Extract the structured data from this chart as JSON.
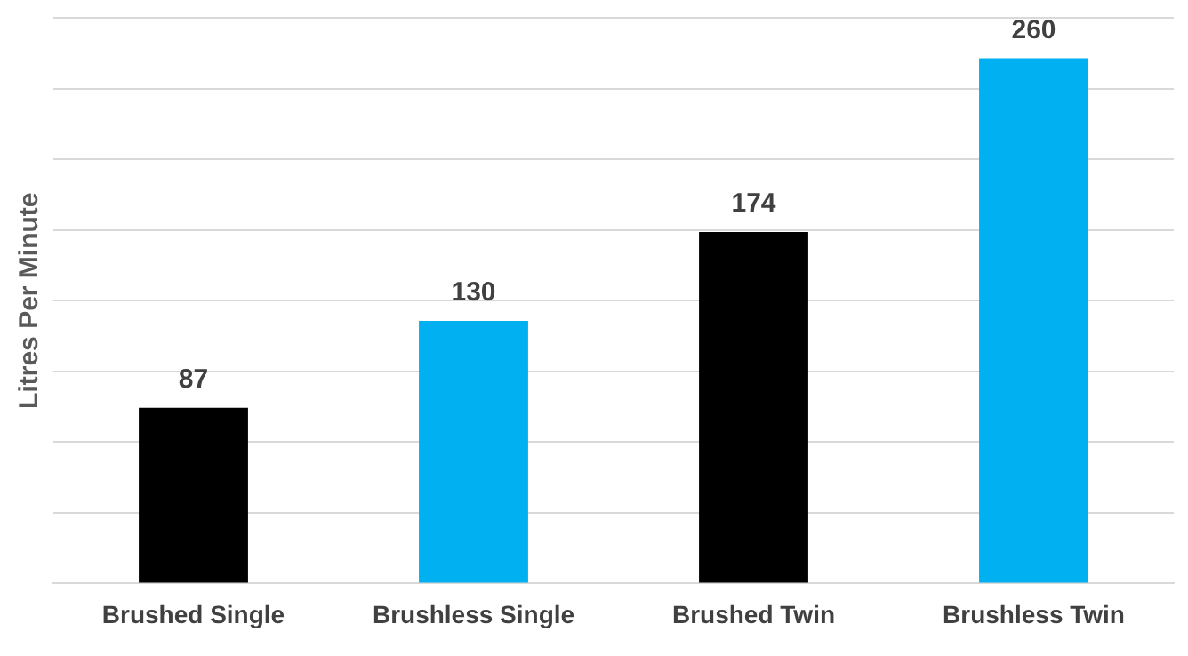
{
  "chart_data": {
    "type": "bar",
    "ylabel": "Litres Per Minute",
    "categories": [
      "Brushed Single",
      "Brushless Single",
      "Brushed Twin",
      "Brushless Twin"
    ],
    "values": [
      87,
      130,
      174,
      260
    ],
    "colors": [
      "#000000",
      "#00b0f0",
      "#000000",
      "#00b0f0"
    ],
    "ylim": [
      0,
      280
    ],
    "yticks": [
      {
        "value": 0,
        "label": null
      },
      {
        "value": 35,
        "label": null
      },
      {
        "value": 70,
        "label": null
      },
      {
        "value": 105,
        "label": null
      },
      {
        "value": 140,
        "label": null
      },
      {
        "value": 175,
        "label": null
      },
      {
        "value": 210,
        "label": null
      },
      {
        "value": 245,
        "label": null
      },
      {
        "value": 280,
        "label": null
      }
    ],
    "grid": "y",
    "legend": false,
    "tick_labels": "x",
    "data_labels": true
  }
}
